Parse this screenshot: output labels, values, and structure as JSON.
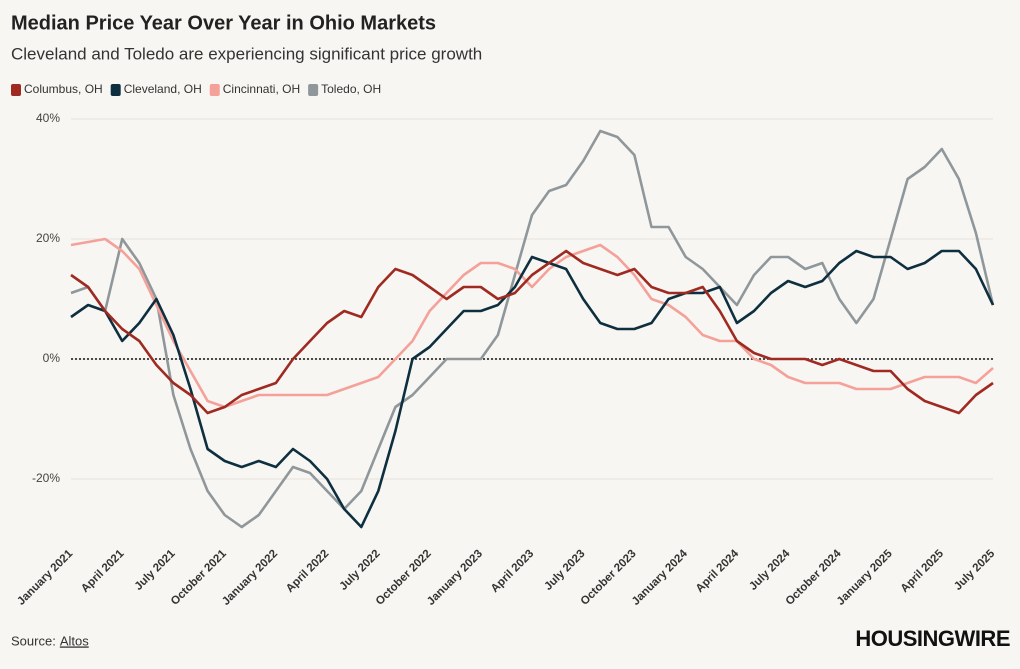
{
  "chart_data": {
    "type": "line",
    "title": "Median Price Year Over Year in Ohio Markets",
    "subtitle": "Cleveland and Toledo are experiencing significant price growth",
    "source_label": "Source:",
    "source": "Altos",
    "brand": "HOUSINGWIRE",
    "categories": [
      "January 2021",
      null,
      null,
      "April 2021",
      null,
      null,
      "July 2021",
      null,
      null,
      "October 2021",
      null,
      null,
      "January 2022",
      null,
      null,
      "April 2022",
      null,
      null,
      "July 2022",
      null,
      null,
      "October 2022",
      null,
      null,
      "January 2023",
      null,
      null,
      "April 2023",
      null,
      null,
      "July 2023",
      null,
      null,
      "October 2023",
      null,
      null,
      "January 2024",
      null,
      null,
      "April 2024",
      null,
      null,
      "July 2024",
      null,
      null,
      "October 2024",
      null,
      null,
      "January 2025",
      null,
      null,
      "April 2025",
      null,
      null,
      "July 2025"
    ],
    "series": [
      {
        "name": "Columbus, OH",
        "color": "#9e2a22",
        "values": [
          14,
          12,
          8,
          5,
          3,
          -1,
          -4,
          -6,
          -9,
          -8,
          -6,
          -5,
          -4,
          0,
          3,
          6,
          8,
          7,
          12,
          15,
          14,
          12,
          10,
          12,
          12,
          10,
          11,
          14,
          16,
          18,
          16,
          15,
          14,
          15,
          12,
          11,
          11,
          12,
          8,
          3,
          1,
          0,
          0,
          0,
          -1,
          0,
          -1,
          -2,
          -2,
          -5,
          -7,
          -8,
          -9,
          -6,
          -4
        ]
      },
      {
        "name": "Cleveland, OH",
        "color": "#0d2f3f",
        "values": [
          7,
          9,
          8,
          3,
          6,
          10,
          4,
          -5,
          -15,
          -17,
          -18,
          -17,
          -18,
          -15,
          -17,
          -20,
          -25,
          -28,
          -22,
          -12,
          0,
          2,
          5,
          8,
          8,
          9,
          12,
          17,
          16,
          15,
          10,
          6,
          5,
          5,
          6,
          10,
          11,
          11,
          12,
          6,
          8,
          11,
          13,
          12,
          13,
          16,
          18,
          17,
          17,
          15,
          16,
          18,
          18,
          15,
          9
        ]
      },
      {
        "name": "Cincinnati, OH",
        "color": "#f4a19a",
        "values": [
          19,
          19.5,
          20,
          18,
          15,
          9,
          3,
          -2,
          -7,
          -8,
          -7,
          -6,
          -6,
          -6,
          -6,
          -6,
          -5,
          -4,
          -3,
          0,
          3,
          8,
          11,
          14,
          16,
          16,
          15,
          12,
          15,
          17,
          18,
          19,
          17,
          14,
          10,
          9,
          7,
          4,
          3,
          3,
          0,
          -1,
          -3,
          -4,
          -4,
          -4,
          -5,
          -5,
          -5,
          -4,
          -3,
          -3,
          -3,
          -4,
          -1.5
        ]
      },
      {
        "name": "Toledo, OH",
        "color": "#8f979b",
        "values": [
          11,
          12,
          8,
          20,
          16,
          10,
          -6,
          -15,
          -22,
          -26,
          -28,
          -26,
          -22,
          -18,
          -19,
          -22,
          -25,
          -22,
          -15,
          -8,
          -6,
          -3,
          0,
          0,
          0,
          4,
          14,
          24,
          28,
          29,
          33,
          38,
          37,
          34,
          22,
          22,
          17,
          15,
          12,
          9,
          14,
          17,
          17,
          15,
          16,
          10,
          6,
          10,
          20,
          30,
          32,
          35,
          30,
          21,
          9
        ]
      }
    ],
    "ylim": [
      -30,
      40
    ],
    "yticks": [
      {
        "value": -20,
        "label": "-20%"
      },
      {
        "value": 0,
        "label": "0%"
      },
      {
        "value": 20,
        "label": "20%"
      },
      {
        "value": 40,
        "label": "40%"
      }
    ],
    "grid": true,
    "zero_line": true,
    "legend": "top"
  }
}
